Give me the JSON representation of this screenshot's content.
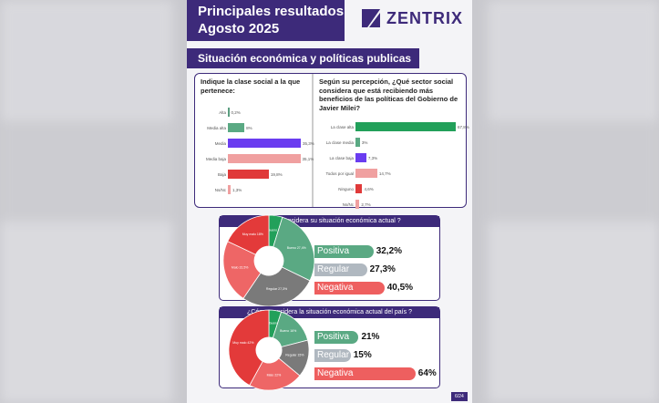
{
  "header": {
    "title_line1": "Principales resultados",
    "title_line2": "Agosto 2025",
    "logo": "ZENTRIX"
  },
  "section_title": "Situación económica y políticas publicas",
  "chart_data": [
    {
      "type": "bar",
      "title": "Indique la clase social a la que pertenece:",
      "categories": [
        "Alta",
        "Media alta",
        "Media",
        "Media baja",
        "Baja",
        "Ns/Nc"
      ],
      "values": [
        0.2,
        8,
        35.3,
        35.1,
        19.8,
        1.3
      ],
      "labels": [
        "0,2%",
        "8%",
        "35,3%",
        "35,1%",
        "19,8%",
        "1,3%"
      ],
      "colors": [
        "#5a9e80",
        "#5aa983",
        "#6a3cf0",
        "#f0a0a0",
        "#e03a3a",
        "#f0a0a0"
      ]
    },
    {
      "type": "bar",
      "title": "Según su percepción, ¿Qué sector social considera que está recibiendo más beneficios de las políticas del Gobierno de Javier Milei?",
      "categories": [
        "La clase alta",
        "La clase media",
        "La clase baja",
        "Todos por igual",
        "Ninguno",
        "Ns/Nc"
      ],
      "values": [
        67.8,
        3,
        7.3,
        14.7,
        4.6,
        2.7
      ],
      "labels": [
        "67,8%",
        "3%",
        "7,3%",
        "14,7%",
        "4,6%",
        "2,7%"
      ],
      "colors": [
        "#22a05a",
        "#5aa983",
        "#6a3cf0",
        "#f0a0a0",
        "#e03a3a",
        "#f0a0a0"
      ]
    },
    {
      "type": "pie",
      "title": "¿Cómo considera su situación económica actual ?",
      "categories": [
        "Muy bueno",
        "Bueno",
        "Regular",
        "Malo",
        "Muy malo"
      ],
      "values": [
        4.8,
        27.4,
        27.3,
        22.5,
        18
      ],
      "colors": [
        "#22a05a",
        "#5aa983",
        "#7a7a7a",
        "#ee6666",
        "#e33a3a"
      ],
      "summary": [
        {
          "label": "Positiva",
          "value": "32,2%",
          "pct": 32.2,
          "color": "#5aa983"
        },
        {
          "label": "Regular",
          "value": "27,3%",
          "pct": 27.3,
          "color": "#b0b8c0"
        },
        {
          "label": "Negativa",
          "value": "40,5%",
          "pct": 40.5,
          "color": "#ee5f5f"
        }
      ]
    },
    {
      "type": "pie",
      "title": "¿Cómo considera la situación económica actual del país ?",
      "categories": [
        "Muy bueno",
        "Bueno",
        "Regular",
        "Malo",
        "Muy malo"
      ],
      "values": [
        5,
        16,
        15,
        22,
        42
      ],
      "colors": [
        "#22a05a",
        "#5aa983",
        "#7a7a7a",
        "#ee6666",
        "#e33a3a"
      ],
      "summary": [
        {
          "label": "Positiva",
          "value": "21%",
          "pct": 21,
          "color": "#5aa983"
        },
        {
          "label": "Regular",
          "value": "15%",
          "pct": 15,
          "color": "#b0b8c0"
        },
        {
          "label": "Negativa",
          "value": "64%",
          "pct": 64,
          "color": "#ee5f5f"
        }
      ]
    }
  ],
  "page_number": "6/24"
}
